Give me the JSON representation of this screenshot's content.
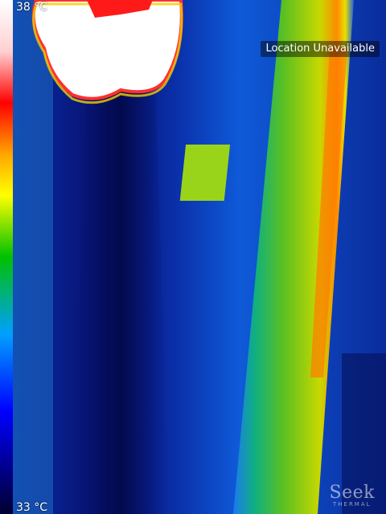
{
  "scale": {
    "max_label": "38 °C",
    "min_label": "33 °C",
    "colors": [
      "#ffffff",
      "#ff0000",
      "#ffa500",
      "#ffff00",
      "#00c000",
      "#00a0ff",
      "#0000ff",
      "#000030"
    ]
  },
  "location": {
    "label": "Location Unavailable"
  },
  "brand": {
    "name": "Seek",
    "sub": "THERMAL"
  }
}
